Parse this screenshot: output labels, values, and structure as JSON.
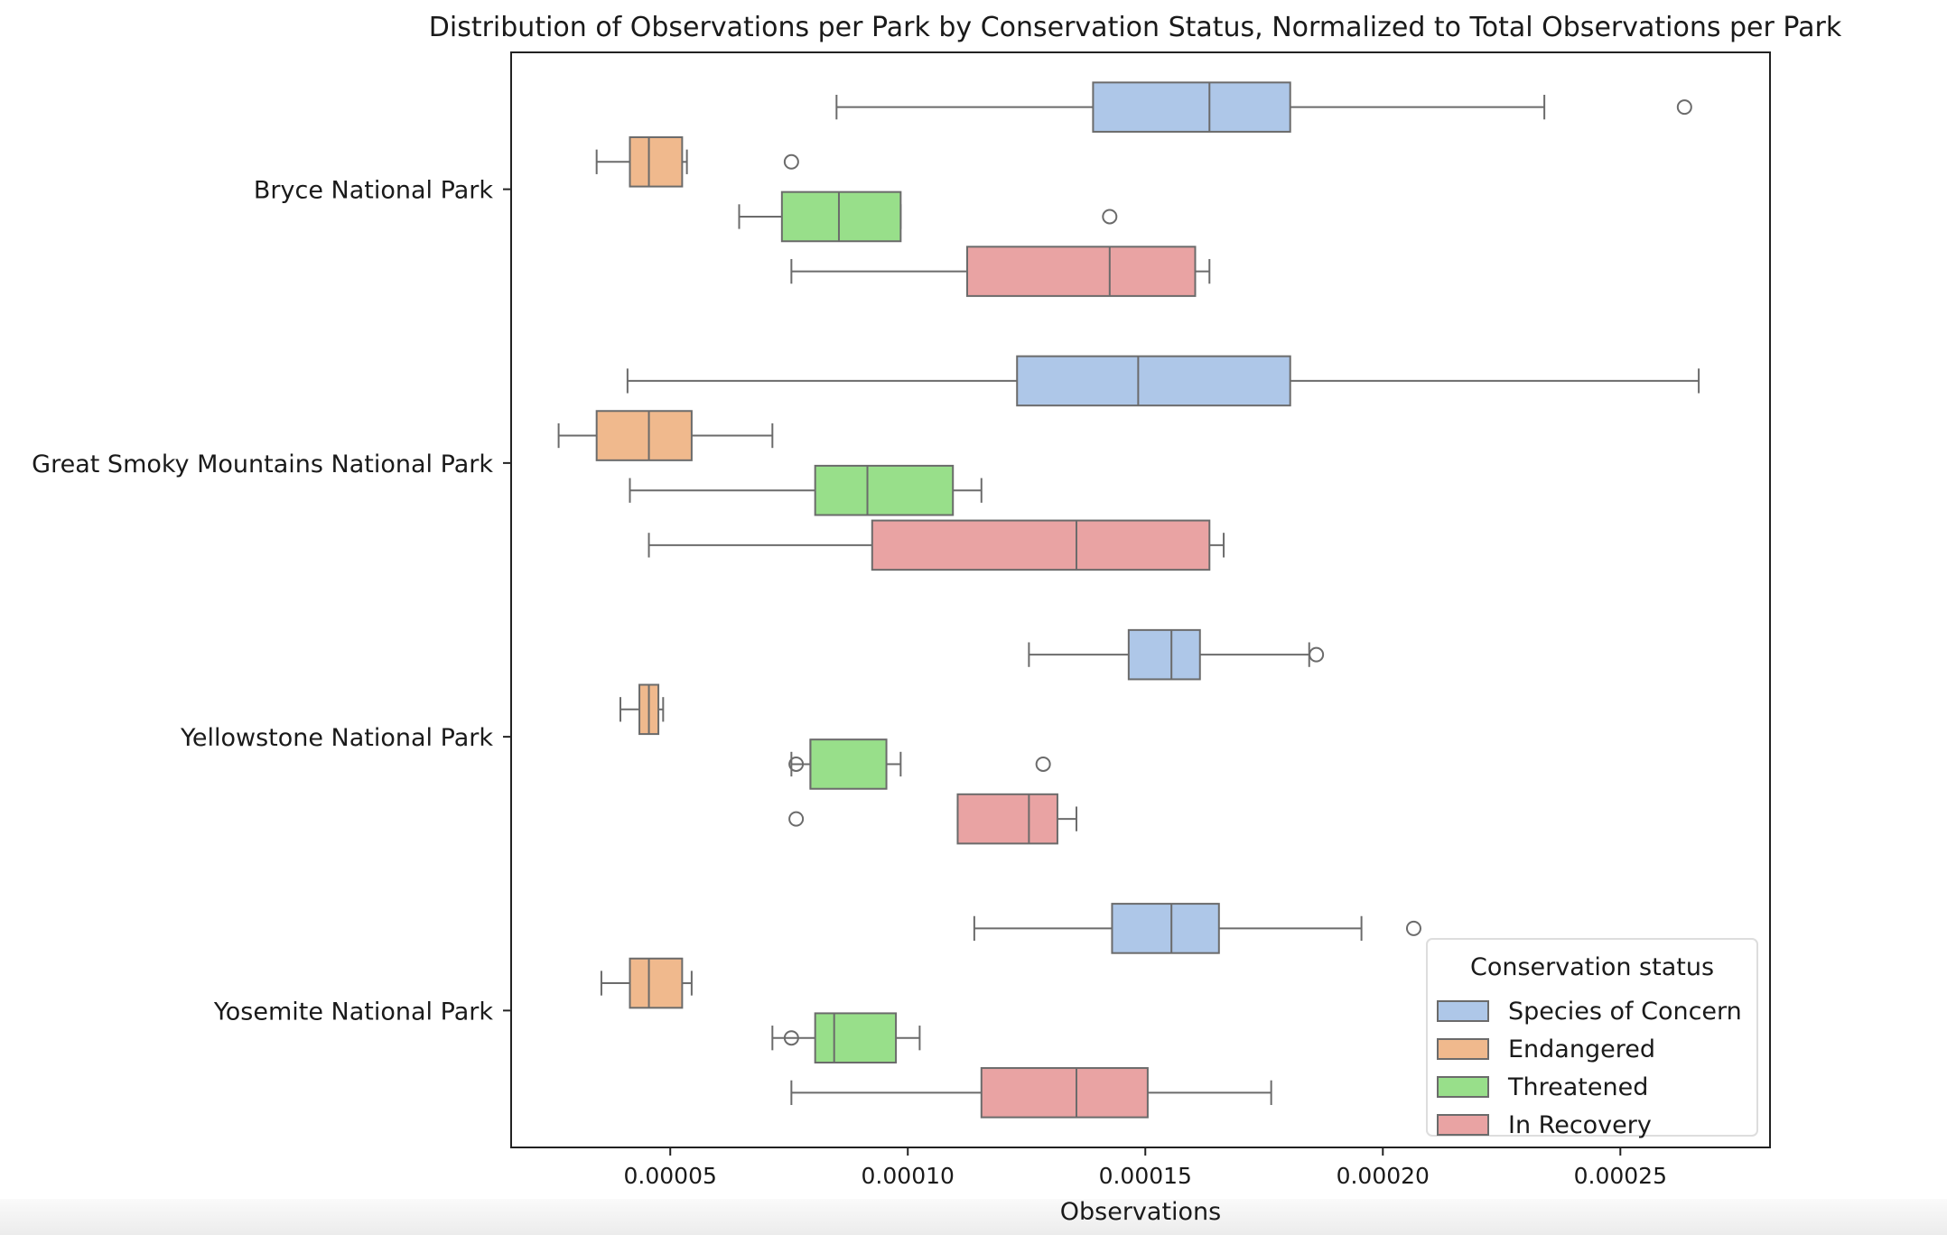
{
  "chart_data": {
    "type": "boxplot",
    "orientation": "horizontal",
    "title": "Distribution of Observations per Park by Conservation Status, Normalized to Total Observations per Park",
    "xlabel": "Observations",
    "ylabel": "",
    "xlim": [
      1.65e-05,
      0.0002815
    ],
    "xticks": [
      5e-05,
      0.0001,
      0.00015,
      0.0002,
      0.00025
    ],
    "xtick_labels": [
      "0.00005",
      "0.00010",
      "0.00015",
      "0.00020",
      "0.00025"
    ],
    "categories": [
      "Bryce National Park",
      "Great Smoky Mountains National Park",
      "Yellowstone National Park",
      "Yosemite National Park"
    ],
    "legend": {
      "title": "Conservation status",
      "position": "lower-right"
    },
    "grid": false,
    "series": [
      {
        "name": "Species of Concern",
        "color": "#aec7e8",
        "boxes": [
          {
            "whislo": 8.5e-05,
            "q1": 0.000139,
            "med": 0.0001635,
            "q3": 0.0001805,
            "whishi": 0.000234,
            "fliers": [
              0.0002635
            ]
          },
          {
            "whislo": 4.1e-05,
            "q1": 0.000123,
            "med": 0.0001485,
            "q3": 0.0001805,
            "whishi": 0.0002665,
            "fliers": []
          },
          {
            "whislo": 0.0001255,
            "q1": 0.0001465,
            "med": 0.0001555,
            "q3": 0.0001615,
            "whishi": 0.0001845,
            "fliers": [
              0.000186
            ]
          },
          {
            "whislo": 0.000114,
            "q1": 0.000143,
            "med": 0.0001555,
            "q3": 0.0001655,
            "whishi": 0.0001955,
            "fliers": [
              0.0002065
            ]
          }
        ]
      },
      {
        "name": "Endangered",
        "color": "#f0b98d",
        "boxes": [
          {
            "whislo": 3.45e-05,
            "q1": 4.15e-05,
            "med": 4.55e-05,
            "q3": 5.25e-05,
            "whishi": 5.35e-05,
            "fliers": []
          },
          {
            "whislo": 2.65e-05,
            "q1": 3.45e-05,
            "med": 4.55e-05,
            "q3": 5.45e-05,
            "whishi": 7.15e-05,
            "fliers": []
          },
          {
            "whislo": 3.95e-05,
            "q1": 4.35e-05,
            "med": 4.55e-05,
            "q3": 4.75e-05,
            "whishi": 4.85e-05,
            "fliers": []
          },
          {
            "whislo": 3.55e-05,
            "q1": 4.15e-05,
            "med": 4.55e-05,
            "q3": 5.25e-05,
            "whishi": 5.45e-05,
            "fliers": []
          }
        ]
      },
      {
        "name": "Threatened",
        "color": "#98df8a",
        "boxes": [
          {
            "whislo": 6.45e-05,
            "q1": 7.35e-05,
            "med": 8.55e-05,
            "q3": 9.85e-05,
            "whishi": 9.85e-05,
            "fliers": [
              7.55e-05
            ]
          },
          {
            "whislo": 4.15e-05,
            "q1": 8.05e-05,
            "med": 9.15e-05,
            "q3": 0.0001095,
            "whishi": 0.0001155,
            "fliers": []
          },
          {
            "whislo": 7.55e-05,
            "q1": 7.95e-05,
            "med": 7.95e-05,
            "q3": 9.55e-05,
            "whishi": 9.85e-05,
            "fliers": [
              7.65e-05
            ]
          },
          {
            "whislo": 7.15e-05,
            "q1": 8.05e-05,
            "med": 8.45e-05,
            "q3": 9.75e-05,
            "whishi": 0.0001025,
            "fliers": [
              7.55e-05
            ]
          }
        ]
      },
      {
        "name": "In Recovery",
        "color": "#e9a3a3",
        "boxes": [
          {
            "whislo": 7.55e-05,
            "q1": 0.0001125,
            "med": 0.0001425,
            "q3": 0.0001605,
            "whishi": 0.0001635,
            "fliers": [
              0.0001425
            ]
          },
          {
            "whislo": 4.55e-05,
            "q1": 9.25e-05,
            "med": 0.0001355,
            "q3": 0.0001635,
            "whishi": 0.0001665,
            "fliers": []
          },
          {
            "whislo": 0.0001105,
            "q1": 0.0001105,
            "med": 0.0001255,
            "q3": 0.0001315,
            "whishi": 0.0001355,
            "fliers": [
              0.0001285,
              7.65e-05
            ]
          },
          {
            "whislo": 7.55e-05,
            "q1": 0.0001155,
            "med": 0.0001355,
            "q3": 0.0001505,
            "whishi": 0.0001765,
            "fliers": []
          }
        ]
      }
    ]
  }
}
